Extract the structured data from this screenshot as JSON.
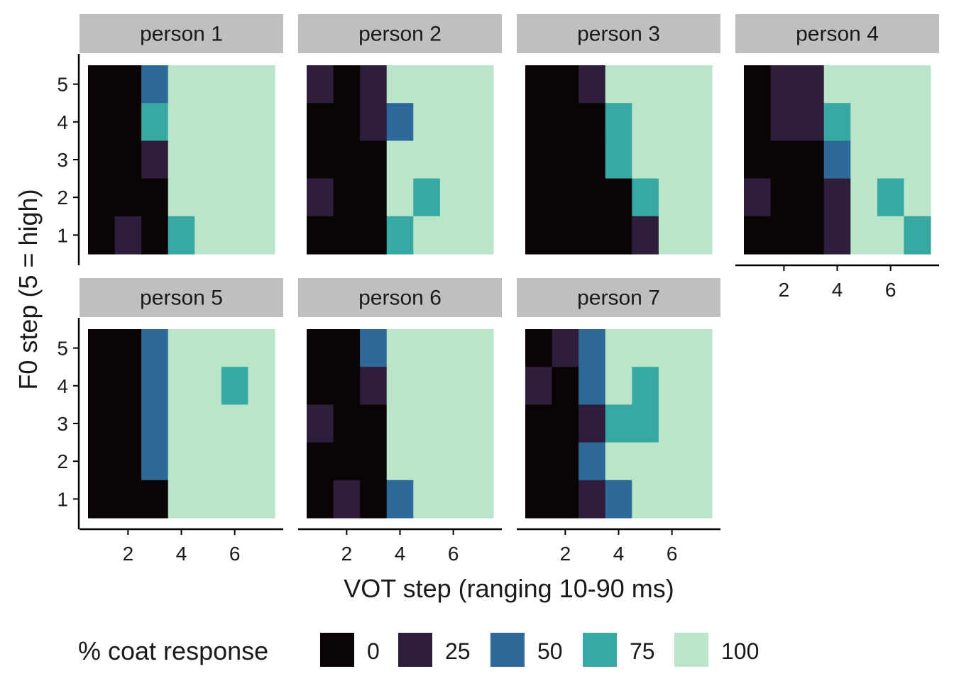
{
  "chart_data": {
    "type": "heatmap",
    "xlabel": "VOT step (ranging 10-90 ms)",
    "ylabel": "F0 step (5 = high)",
    "x_steps": [
      1,
      2,
      3,
      4,
      5,
      6,
      7
    ],
    "y_steps": [
      1,
      2,
      3,
      4,
      5
    ],
    "x_ticks": [
      2,
      4,
      6
    ],
    "y_ticks": [
      1,
      2,
      3,
      4,
      5
    ],
    "xlim": [
      0.5,
      7.5
    ],
    "ylim": [
      0.5,
      5.5
    ],
    "legend": {
      "title": "% coat response",
      "position": "bottom",
      "levels": [
        {
          "label": "0",
          "value": 0,
          "color": "#0b0405"
        },
        {
          "label": "25",
          "value": 25,
          "color": "#2e1e3c"
        },
        {
          "label": "50",
          "value": 50,
          "color": "#2d6a99"
        },
        {
          "label": "75",
          "value": 75,
          "color": "#37a8a2"
        },
        {
          "label": "100",
          "value": 100,
          "color": "#bbe5c8"
        }
      ]
    },
    "panels": [
      {
        "name": "person 1",
        "rows": [
          {
            "f0": 5,
            "values": [
              0,
              0,
              62,
              100,
              100,
              100,
              100
            ]
          },
          {
            "f0": 4,
            "values": [
              0,
              0,
              83,
              100,
              100,
              100,
              100
            ]
          },
          {
            "f0": 3,
            "values": [
              0,
              0,
              30,
              100,
              100,
              100,
              100
            ]
          },
          {
            "f0": 2,
            "values": [
              0,
              0,
              0,
              100,
              100,
              100,
              100
            ]
          },
          {
            "f0": 1,
            "values": [
              0,
              17,
              0,
              83,
              100,
              100,
              100
            ]
          }
        ]
      },
      {
        "name": "person 2",
        "rows": [
          {
            "f0": 5,
            "values": [
              17,
              0,
              33,
              100,
              100,
              100,
              100
            ]
          },
          {
            "f0": 4,
            "values": [
              0,
              0,
              17,
              62,
              100,
              100,
              100
            ]
          },
          {
            "f0": 3,
            "values": [
              0,
              0,
              0,
              100,
              100,
              100,
              100
            ]
          },
          {
            "f0": 2,
            "values": [
              17,
              0,
              0,
              100,
              83,
              100,
              100
            ]
          },
          {
            "f0": 1,
            "values": [
              0,
              0,
              0,
              83,
              100,
              100,
              100
            ]
          }
        ]
      },
      {
        "name": "person 3",
        "rows": [
          {
            "f0": 5,
            "values": [
              0,
              0,
              33,
              100,
              100,
              100,
              100
            ]
          },
          {
            "f0": 4,
            "values": [
              0,
              0,
              0,
              83,
              100,
              100,
              100
            ]
          },
          {
            "f0": 3,
            "values": [
              0,
              0,
              0,
              83,
              100,
              100,
              100
            ]
          },
          {
            "f0": 2,
            "values": [
              0,
              0,
              0,
              0,
              83,
              100,
              100
            ]
          },
          {
            "f0": 1,
            "values": [
              0,
              0,
              0,
              0,
              33,
              100,
              100
            ]
          }
        ]
      },
      {
        "name": "person 4",
        "rows": [
          {
            "f0": 5,
            "values": [
              0,
              17,
              33,
              100,
              100,
              100,
              100
            ]
          },
          {
            "f0": 4,
            "values": [
              0,
              17,
              17,
              83,
              100,
              100,
              100
            ]
          },
          {
            "f0": 3,
            "values": [
              0,
              0,
              0,
              62,
              100,
              100,
              100
            ]
          },
          {
            "f0": 2,
            "values": [
              17,
              0,
              0,
              33,
              100,
              83,
              100
            ]
          },
          {
            "f0": 1,
            "values": [
              0,
              0,
              0,
              17,
              100,
              100,
              83
            ]
          }
        ]
      },
      {
        "name": "person 5",
        "rows": [
          {
            "f0": 5,
            "values": [
              0,
              0,
              50,
              100,
              100,
              100,
              100
            ]
          },
          {
            "f0": 4,
            "values": [
              0,
              0,
              50,
              100,
              100,
              83,
              100
            ]
          },
          {
            "f0": 3,
            "values": [
              0,
              0,
              50,
              100,
              100,
              100,
              100
            ]
          },
          {
            "f0": 2,
            "values": [
              0,
              0,
              50,
              100,
              100,
              100,
              100
            ]
          },
          {
            "f0": 1,
            "values": [
              0,
              0,
              0,
              100,
              100,
              100,
              100
            ]
          }
        ]
      },
      {
        "name": "person 6",
        "rows": [
          {
            "f0": 5,
            "values": [
              0,
              0,
              50,
              100,
              100,
              100,
              100
            ]
          },
          {
            "f0": 4,
            "values": [
              0,
              0,
              17,
              100,
              100,
              100,
              100
            ]
          },
          {
            "f0": 3,
            "values": [
              17,
              0,
              0,
              100,
              100,
              100,
              100
            ]
          },
          {
            "f0": 2,
            "values": [
              0,
              0,
              0,
              100,
              100,
              100,
              100
            ]
          },
          {
            "f0": 1,
            "values": [
              0,
              33,
              0,
              62,
              100,
              100,
              100
            ]
          }
        ]
      },
      {
        "name": "person 7",
        "rows": [
          {
            "f0": 5,
            "values": [
              0,
              17,
              50,
              100,
              100,
              100,
              100
            ]
          },
          {
            "f0": 4,
            "values": [
              17,
              0,
              62,
              100,
              83,
              100,
              100
            ]
          },
          {
            "f0": 3,
            "values": [
              0,
              0,
              33,
              83,
              83,
              100,
              100
            ]
          },
          {
            "f0": 2,
            "values": [
              0,
              0,
              50,
              100,
              100,
              100,
              100
            ]
          },
          {
            "f0": 1,
            "values": [
              0,
              0,
              17,
              62,
              100,
              100,
              100
            ]
          }
        ]
      }
    ]
  }
}
